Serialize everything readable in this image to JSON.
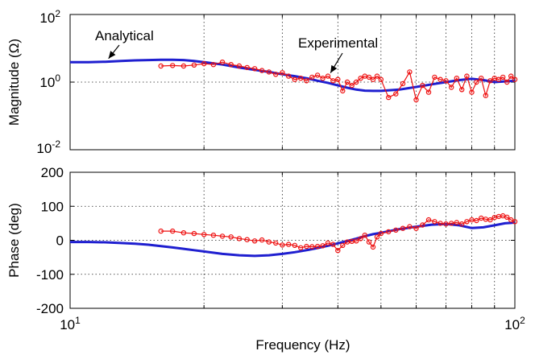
{
  "chart_data": [
    {
      "type": "line",
      "xlabel": "",
      "ylabel": "Magnitude (Ω)",
      "xscale": "log",
      "yscale": "log",
      "xlim": [
        10,
        100
      ],
      "ylim": [
        0.01,
        100
      ],
      "yticks": [
        {
          "base": "10",
          "exp": "2"
        },
        {
          "base": "10",
          "exp": "0"
        },
        {
          "base": "10",
          "exp": "-2"
        }
      ],
      "grid": true,
      "annotations": [
        {
          "text": "Analytical",
          "series": "Analytical",
          "x": 12.2,
          "y": 5.0
        },
        {
          "text": "Experimental",
          "series": "Experimental",
          "x": 38.5,
          "y": 1.5
        }
      ],
      "series": [
        {
          "name": "Analytical",
          "color": "#1f1fd0",
          "x": [
            10,
            11,
            12,
            13,
            14,
            15,
            16,
            17,
            18,
            19,
            20,
            22,
            24,
            26,
            28,
            30,
            32,
            34,
            36,
            38,
            40,
            42,
            44,
            46,
            48,
            50,
            55,
            60,
            65,
            70,
            75,
            80,
            85,
            90,
            95,
            100
          ],
          "y": [
            3.9,
            3.9,
            4.0,
            4.2,
            4.4,
            4.5,
            4.6,
            4.6,
            4.5,
            4.2,
            3.9,
            3.3,
            2.7,
            2.3,
            2.0,
            1.7,
            1.5,
            1.3,
            1.1,
            0.95,
            0.8,
            0.68,
            0.6,
            0.56,
            0.55,
            0.55,
            0.6,
            0.72,
            0.86,
            1.0,
            1.15,
            1.25,
            1.15,
            1.0,
            1.05,
            1.1
          ]
        },
        {
          "name": "Experimental",
          "color": "#ee1111",
          "x": [
            16,
            17,
            18,
            19,
            20,
            21,
            22,
            23,
            24,
            25,
            26,
            27,
            28,
            29,
            30,
            31,
            32,
            33,
            34,
            35,
            36,
            37,
            38,
            39,
            40,
            41,
            42,
            43,
            44,
            45,
            46,
            47,
            48,
            49,
            50,
            52,
            54,
            56,
            58,
            60,
            62,
            64,
            66,
            68,
            70,
            72,
            74,
            76,
            78,
            80,
            82,
            84,
            86,
            88,
            90,
            92,
            94,
            96,
            98,
            100
          ],
          "y": [
            3.0,
            3.1,
            3.0,
            3.2,
            3.5,
            3.3,
            3.9,
            3.3,
            3.0,
            2.7,
            2.5,
            2.2,
            2.0,
            1.7,
            1.9,
            1.5,
            1.2,
            1.3,
            1.1,
            1.4,
            1.6,
            1.3,
            1.5,
            1.1,
            1.2,
            0.55,
            1.0,
            0.8,
            1.0,
            1.3,
            1.5,
            1.4,
            1.2,
            1.5,
            1.2,
            0.35,
            0.45,
            0.9,
            2.0,
            0.3,
            0.8,
            0.5,
            1.4,
            1.2,
            1.1,
            0.7,
            1.3,
            0.6,
            1.5,
            0.5,
            1.0,
            1.3,
            0.4,
            1.1,
            1.3,
            1.2,
            1.4,
            1.0,
            1.5,
            1.2
          ]
        }
      ]
    },
    {
      "type": "line",
      "xlabel": "Frequency (Hz)",
      "ylabel": "Phase (deg)",
      "xscale": "log",
      "xlim": [
        10,
        100
      ],
      "ylim": [
        -200,
        200
      ],
      "yticks": [
        "200",
        "100",
        "0",
        "-100",
        "-200"
      ],
      "xticks": [
        {
          "base": "10",
          "exp": "1"
        },
        {
          "base": "10",
          "exp": "2"
        }
      ],
      "grid": true,
      "series": [
        {
          "name": "Analytical",
          "color": "#1f1fd0",
          "x": [
            10,
            11,
            12,
            13,
            14,
            15,
            16,
            17,
            18,
            19,
            20,
            22,
            24,
            26,
            28,
            30,
            32,
            34,
            36,
            38,
            40,
            42,
            44,
            46,
            48,
            50,
            55,
            60,
            65,
            70,
            75,
            80,
            85,
            90,
            95,
            100
          ],
          "y": [
            -5,
            -5,
            -6,
            -8,
            -10,
            -13,
            -17,
            -21,
            -25,
            -29,
            -33,
            -40,
            -44,
            -46,
            -44,
            -40,
            -35,
            -29,
            -23,
            -16,
            -9,
            -2,
            5,
            12,
            18,
            22,
            33,
            40,
            46,
            48,
            44,
            36,
            38,
            44,
            50,
            52
          ]
        },
        {
          "name": "Experimental",
          "color": "#ee1111",
          "x": [
            16,
            17,
            18,
            19,
            20,
            21,
            22,
            23,
            24,
            25,
            26,
            27,
            28,
            29,
            30,
            31,
            32,
            33,
            34,
            35,
            36,
            37,
            38,
            39,
            40,
            41,
            42,
            43,
            44,
            45,
            46,
            47,
            48,
            49,
            50,
            52,
            54,
            56,
            58,
            60,
            62,
            64,
            66,
            68,
            70,
            72,
            74,
            76,
            78,
            80,
            82,
            84,
            86,
            88,
            90,
            92,
            94,
            96,
            98,
            100
          ],
          "y": [
            27,
            27,
            22,
            20,
            17,
            15,
            12,
            10,
            5,
            2,
            -2,
            1,
            -5,
            -8,
            -14,
            -12,
            -15,
            -22,
            -18,
            -19,
            -18,
            -16,
            -8,
            -12,
            -30,
            -15,
            -5,
            -3,
            -2,
            5,
            15,
            -5,
            -20,
            10,
            20,
            25,
            30,
            35,
            40,
            35,
            45,
            60,
            55,
            50,
            48,
            50,
            52,
            48,
            55,
            60,
            58,
            65,
            62,
            60,
            67,
            70,
            72,
            68,
            60,
            55
          ]
        }
      ]
    }
  ]
}
